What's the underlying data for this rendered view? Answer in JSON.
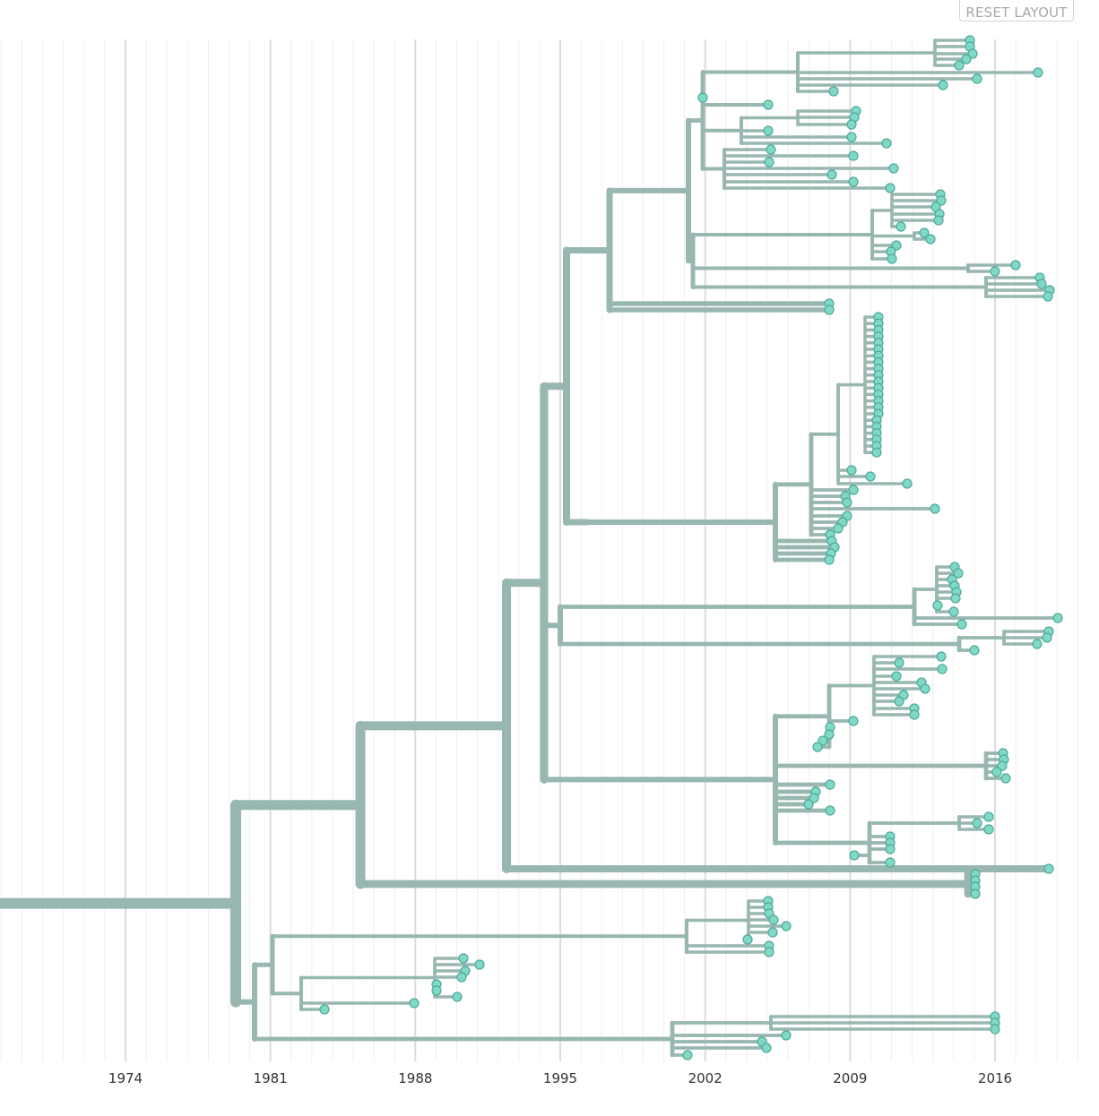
{
  "toolbar": {
    "reset_label": "RESET LAYOUT"
  },
  "colors": {
    "branch": "#98b7b0",
    "tip_fill": "#7fd9c6",
    "tip_stroke": "#4fa99a",
    "grid": "#eeeeee",
    "grid_major": "#dcdcdc"
  },
  "chart_data": {
    "type": "phylogenetic-tree",
    "axis": {
      "xlim": [
        1968,
        2019.5
      ],
      "ticks": [
        1974,
        1981,
        1988,
        1995,
        2002,
        2009,
        2016
      ],
      "grid": true
    },
    "tick_labels": [
      "1974",
      "1981",
      "1988",
      "1995",
      "2002",
      "2009",
      "2016"
    ]
  }
}
